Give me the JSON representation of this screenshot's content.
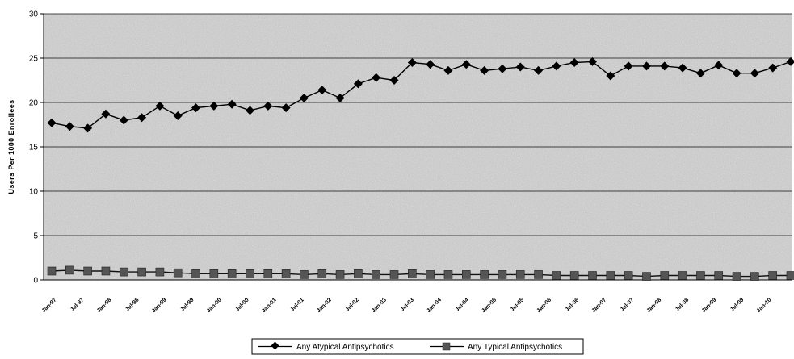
{
  "chart_data": {
    "type": "line",
    "ylabel": "Users Per 1000 Enrollees",
    "ylim": [
      0,
      30
    ],
    "yticks": [
      0,
      5,
      10,
      15,
      20,
      25,
      30
    ],
    "grid": true,
    "legend_position": "bottom-center",
    "x_tick_labels": [
      "Jan-97",
      "Jul-97",
      "Jan-98",
      "Jul-98",
      "Jan-99",
      "Jul-99",
      "Jan-00",
      "Jul-00",
      "Jan-01",
      "Jul-01",
      "Jan-02",
      "Jul-02",
      "Jan-03",
      "Jul-03",
      "Jan-04",
      "Jul-04",
      "Jan-05",
      "Jul-05",
      "Jan-06",
      "Jul-06",
      "Jan-07",
      "Jul-07",
      "Jan-08",
      "Jul-08",
      "Jan-09",
      "Jul-09",
      "Jan-10"
    ],
    "series": [
      {
        "name": "Any Atypical Antipsychotics",
        "color": "#000000",
        "marker": "diamond",
        "values": [
          17.7,
          17.3,
          17.1,
          18.7,
          18.0,
          18.3,
          19.6,
          18.5,
          19.4,
          19.6,
          19.8,
          19.1,
          19.6,
          19.4,
          20.5,
          21.4,
          20.5,
          22.1,
          22.8,
          22.5,
          24.5,
          24.3,
          23.6,
          24.3,
          23.6,
          23.8,
          24.0,
          23.6,
          24.1,
          24.5,
          24.6,
          23.0,
          24.1,
          24.1,
          24.1,
          23.9,
          23.3,
          24.2,
          23.3,
          23.3,
          23.9,
          24.6
        ]
      },
      {
        "name": "Any Typical Antipsychotics",
        "color": "#555555",
        "marker": "square",
        "values": [
          1.0,
          1.1,
          1.0,
          1.0,
          0.9,
          0.9,
          0.9,
          0.8,
          0.7,
          0.7,
          0.7,
          0.7,
          0.7,
          0.7,
          0.6,
          0.7,
          0.6,
          0.7,
          0.6,
          0.6,
          0.7,
          0.6,
          0.6,
          0.6,
          0.6,
          0.6,
          0.6,
          0.6,
          0.5,
          0.5,
          0.5,
          0.5,
          0.5,
          0.4,
          0.5,
          0.5,
          0.5,
          0.5,
          0.4,
          0.4,
          0.5,
          0.5
        ]
      }
    ]
  }
}
